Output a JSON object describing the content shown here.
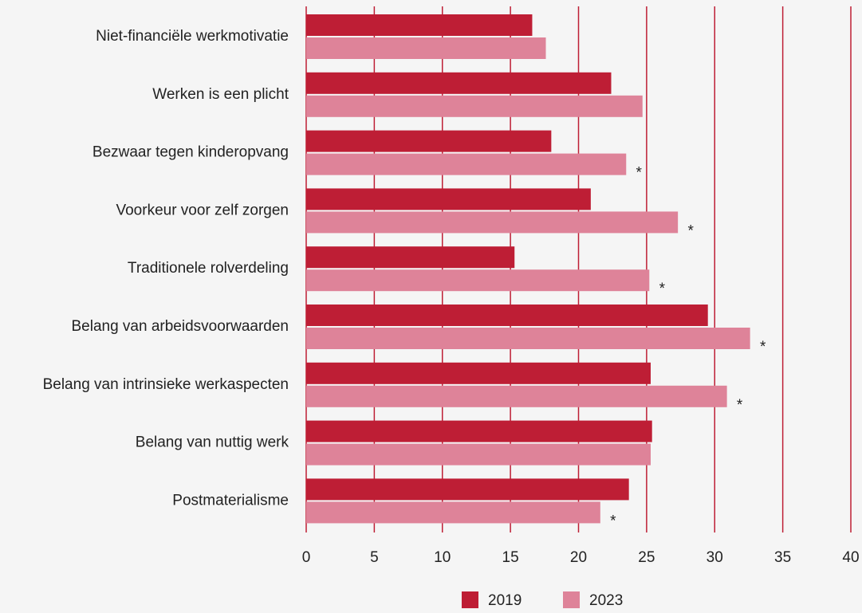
{
  "chart_data": {
    "type": "hbar",
    "categories": [
      "Niet-financiële werkmotivatie",
      "Werken is een plicht",
      "Bezwaar tegen kinderopvang",
      "Voorkeur voor zelf zorgen",
      "Traditionele rolverdeling",
      "Belang van arbeidsvoorwaarden",
      "Belang van intrinsieke werkaspecten",
      "Belang van nuttig werk",
      "Postmaterialisme"
    ],
    "series": [
      {
        "name": "2019",
        "color": "#be1e35",
        "values": [
          16.6,
          22.4,
          18.0,
          20.9,
          15.3,
          29.5,
          25.3,
          25.4,
          23.7
        ]
      },
      {
        "name": "2023",
        "color": "#de8399",
        "values": [
          17.6,
          24.7,
          23.5,
          27.3,
          25.2,
          32.6,
          30.9,
          25.3,
          21.6
        ],
        "significance": [
          null,
          null,
          "*",
          "*",
          "*",
          "*",
          "*",
          null,
          "*"
        ]
      }
    ],
    "xlim": [
      0,
      40
    ],
    "xticks": [
      0,
      5,
      10,
      15,
      20,
      25,
      30,
      35,
      40
    ],
    "grid": true,
    "grid_color": "#be1e35",
    "legend": "bottom"
  }
}
